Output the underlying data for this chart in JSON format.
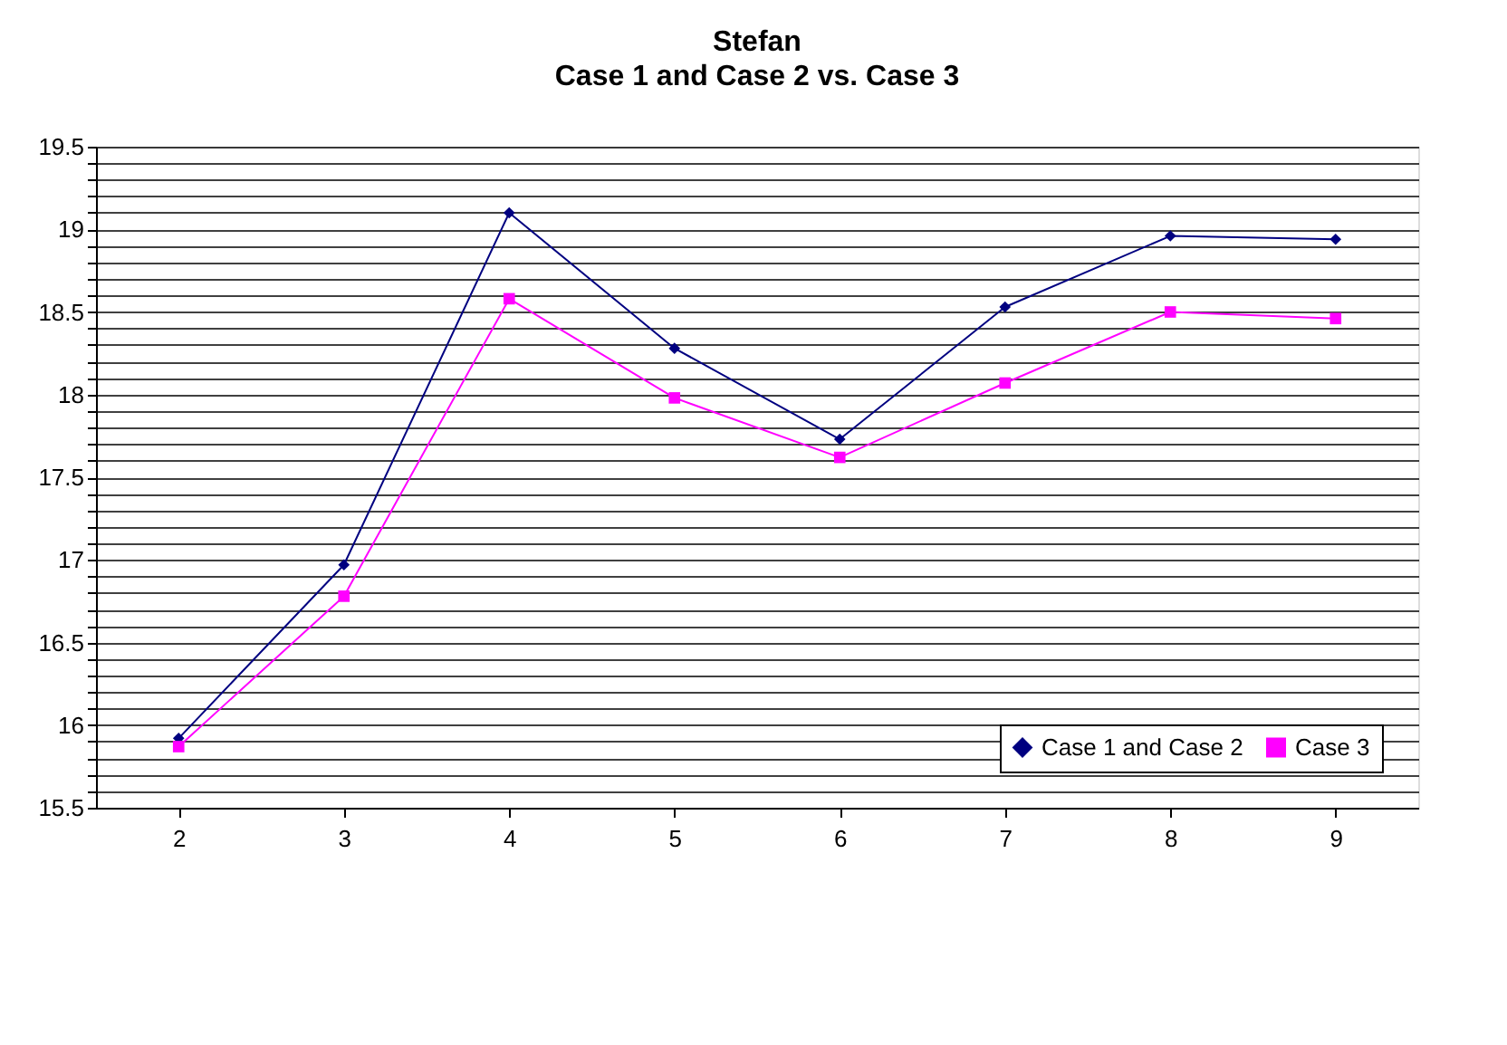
{
  "chart_data": {
    "type": "line",
    "title": "Stefan",
    "subtitle": "Case 1 and Case 2 vs. Case 3",
    "categories": [
      "2",
      "3",
      "4",
      "5",
      "6",
      "7",
      "8",
      "9"
    ],
    "series": [
      {
        "name": "Case 1 and Case 2",
        "color": "#000080",
        "marker": "diamond",
        "values": [
          15.92,
          16.97,
          19.1,
          18.28,
          17.73,
          18.53,
          18.96,
          18.94
        ]
      },
      {
        "name": "Case 3",
        "color": "#ff00ff",
        "marker": "square",
        "values": [
          15.87,
          16.78,
          18.58,
          17.98,
          17.62,
          18.07,
          18.5,
          18.46
        ]
      }
    ],
    "ylim": [
      15.5,
      19.5
    ],
    "yticks": [
      15.5,
      {
        "value": 15.6,
        "label": null
      },
      {
        "value": 15.7,
        "label": null
      },
      {
        "value": 15.8,
        "label": null
      },
      {
        "value": 15.9,
        "label": null
      },
      16,
      {
        "value": 16.1,
        "label": null
      },
      {
        "value": 16.2,
        "label": null
      },
      {
        "value": 16.3,
        "label": null
      },
      {
        "value": 16.4,
        "label": null
      },
      16.5,
      {
        "value": 16.6,
        "label": null
      },
      {
        "value": 16.7,
        "label": null
      },
      {
        "value": 16.8,
        "label": null
      },
      {
        "value": 16.9,
        "label": null
      },
      17,
      {
        "value": 17.1,
        "label": null
      },
      {
        "value": 17.2,
        "label": null
      },
      {
        "value": 17.3,
        "label": null
      },
      {
        "value": 17.4,
        "label": null
      },
      17.5,
      {
        "value": 17.6,
        "label": null
      },
      {
        "value": 17.7,
        "label": null
      },
      {
        "value": 17.8,
        "label": null
      },
      {
        "value": 17.9,
        "label": null
      },
      18,
      {
        "value": 18.1,
        "label": null
      },
      {
        "value": 18.2,
        "label": null
      },
      {
        "value": 18.3,
        "label": null
      },
      {
        "value": 18.4,
        "label": null
      },
      18.5,
      {
        "value": 18.6,
        "label": null
      },
      {
        "value": 18.7,
        "label": null
      },
      {
        "value": 18.8,
        "label": null
      },
      {
        "value": 18.9,
        "label": null
      },
      19,
      {
        "value": 19.1,
        "label": null
      },
      {
        "value": 19.2,
        "label": null
      },
      {
        "value": 19.3,
        "label": null
      },
      {
        "value": 19.4,
        "label": null
      },
      19.5
    ],
    "grid": "y",
    "legend": "bottom right",
    "line_style": "solid"
  }
}
